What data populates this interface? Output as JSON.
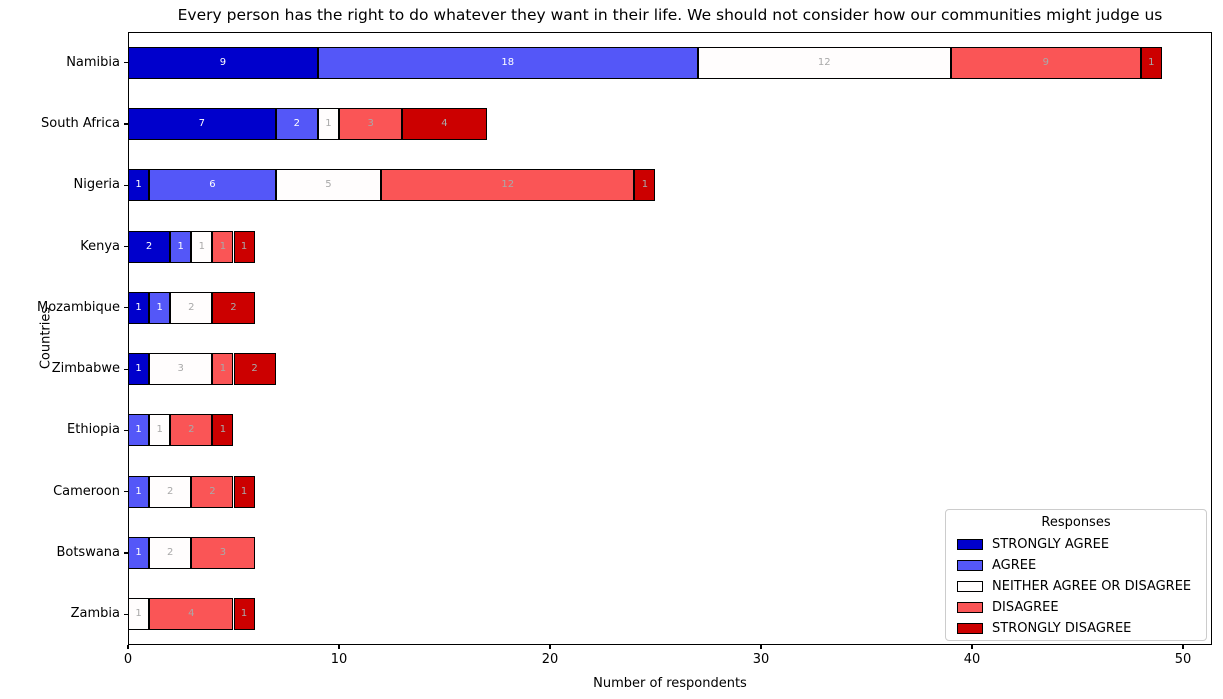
{
  "legend": {
    "title": "Responses"
  },
  "chart_data": {
    "type": "bar",
    "orientation": "horizontal",
    "stacked": true,
    "title": "Every person has the right to do whatever they want in their life. We should not consider how our communities might judge us",
    "xlabel": "Number of respondents",
    "ylabel": "Countries",
    "xlim": [
      0,
      50
    ],
    "xticks": [
      0,
      10,
      20,
      30,
      40,
      50
    ],
    "grid": false,
    "legend_position": "lower right",
    "categories": [
      "Namibia",
      "South Africa",
      "Nigeria",
      "Kenya",
      "Mozambique",
      "Zimbabwe",
      "Ethiopia",
      "Cameroon",
      "Botswana",
      "Zambia"
    ],
    "series": [
      {
        "name": "STRONGLY AGREE",
        "color": "#0000CC",
        "label_color": "#ffffff",
        "values": [
          9,
          7,
          1,
          2,
          1,
          1,
          0,
          0,
          0,
          0
        ]
      },
      {
        "name": "AGREE",
        "color": "#5457F8",
        "label_color": "#ffffff",
        "values": [
          18,
          2,
          6,
          1,
          1,
          0,
          1,
          1,
          1,
          0
        ]
      },
      {
        "name": "NEITHER AGREE OR DISAGREE",
        "color": "#FFFDFD",
        "label_color": "#a9a9a9",
        "values": [
          12,
          1,
          5,
          1,
          2,
          3,
          1,
          2,
          2,
          1
        ]
      },
      {
        "name": "DISAGREE",
        "color": "#FA5556",
        "label_color": "#a9a9a9",
        "values": [
          9,
          3,
          12,
          1,
          0,
          1,
          2,
          2,
          3,
          4
        ]
      },
      {
        "name": "STRONGLY DISAGREE",
        "color": "#CC0000",
        "label_color": "#a9a9a9",
        "values": [
          1,
          4,
          1,
          1,
          2,
          2,
          1,
          1,
          0,
          1
        ]
      }
    ]
  }
}
